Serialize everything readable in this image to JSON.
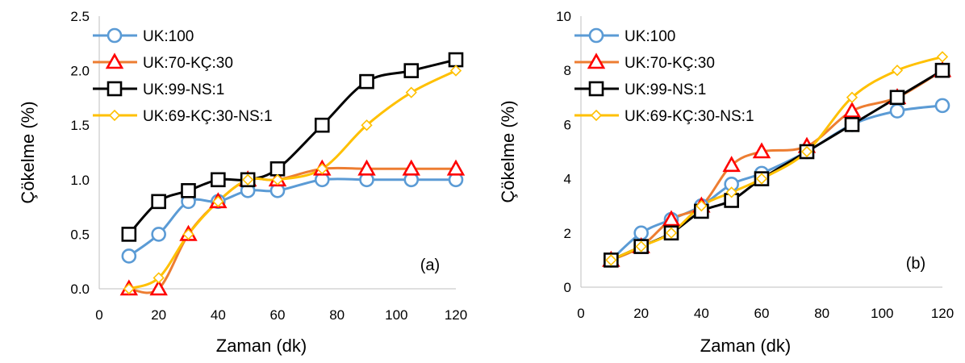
{
  "chart_data": [
    {
      "type": "line",
      "panel_label": "(a)",
      "xlabel": "Zaman (dk)",
      "ylabel": "Çökelme (%)",
      "xlim": [
        0,
        120
      ],
      "ylim": [
        0,
        2.5
      ],
      "x_ticks": [
        "0",
        "20",
        "40",
        "60",
        "80",
        "100",
        "120"
      ],
      "y_ticks": [
        "0.0",
        "0.5",
        "1.0",
        "1.5",
        "2.0",
        "2.5"
      ],
      "grid": false,
      "legend_position": "top-left",
      "series": [
        {
          "name": "UK:100",
          "color": "#5b9bd5",
          "marker": "circle",
          "x": [
            10,
            20,
            30,
            40,
            50,
            60,
            75,
            90,
            105,
            120
          ],
          "y": [
            0.3,
            0.5,
            0.8,
            0.8,
            0.9,
            0.9,
            1.0,
            1.0,
            1.0,
            1.0
          ]
        },
        {
          "name": "UK:70-KÇ:30",
          "color": "#ed7d31",
          "marker_color": "#ff0000",
          "marker": "triangle",
          "x": [
            10,
            20,
            30,
            40,
            50,
            60,
            75,
            90,
            105,
            120
          ],
          "y": [
            0.0,
            0.0,
            0.5,
            0.8,
            1.0,
            1.0,
            1.1,
            1.1,
            1.1,
            1.1
          ]
        },
        {
          "name": "UK:99-NS:1",
          "color": "#000000",
          "marker": "square",
          "x": [
            10,
            20,
            30,
            40,
            50,
            60,
            75,
            90,
            105,
            120
          ],
          "y": [
            0.5,
            0.8,
            0.9,
            1.0,
            1.0,
            1.1,
            1.5,
            1.9,
            2.0,
            2.1
          ]
        },
        {
          "name": "UK:69-KÇ:30-NS:1",
          "color": "#ffc000",
          "marker": "diamond",
          "x": [
            10,
            20,
            30,
            40,
            50,
            60,
            75,
            90,
            105,
            120
          ],
          "y": [
            0.0,
            0.1,
            0.5,
            0.8,
            1.0,
            1.0,
            1.1,
            1.5,
            1.8,
            2.0
          ]
        }
      ]
    },
    {
      "type": "line",
      "panel_label": "(b)",
      "xlabel": "Zaman (dk)",
      "ylabel": "Çökelme (%)",
      "xlim": [
        0,
        120
      ],
      "ylim": [
        0,
        10
      ],
      "x_ticks": [
        "0",
        "20",
        "40",
        "60",
        "80",
        "100",
        "120"
      ],
      "y_ticks": [
        "0",
        "2",
        "4",
        "6",
        "8",
        "10"
      ],
      "grid": false,
      "legend_position": "top-left",
      "series": [
        {
          "name": "UK:100",
          "color": "#5b9bd5",
          "marker": "circle",
          "x": [
            10,
            20,
            30,
            40,
            50,
            60,
            75,
            90,
            105,
            120
          ],
          "y": [
            1.0,
            2.0,
            2.5,
            3.0,
            3.8,
            4.2,
            5.0,
            6.0,
            6.5,
            6.7
          ]
        },
        {
          "name": "UK:70-KÇ:30",
          "color": "#ed7d31",
          "marker_color": "#ff0000",
          "marker": "triangle",
          "x": [
            10,
            20,
            30,
            40,
            50,
            60,
            75,
            90,
            105,
            120
          ],
          "y": [
            1.0,
            1.5,
            2.5,
            3.0,
            4.5,
            5.0,
            5.2,
            6.5,
            7.0,
            8.0
          ]
        },
        {
          "name": "UK:99-NS:1",
          "color": "#000000",
          "marker": "square",
          "x": [
            10,
            20,
            30,
            40,
            50,
            60,
            75,
            90,
            105,
            120
          ],
          "y": [
            1.0,
            1.5,
            2.0,
            2.8,
            3.2,
            4.0,
            5.0,
            6.0,
            7.0,
            8.0
          ]
        },
        {
          "name": "UK:69-KÇ:30-NS:1",
          "color": "#ffc000",
          "marker": "diamond",
          "x": [
            10,
            20,
            30,
            40,
            50,
            60,
            75,
            90,
            105,
            120
          ],
          "y": [
            1.0,
            1.5,
            2.0,
            3.0,
            3.5,
            4.0,
            5.0,
            7.0,
            8.0,
            8.5
          ]
        }
      ]
    }
  ]
}
